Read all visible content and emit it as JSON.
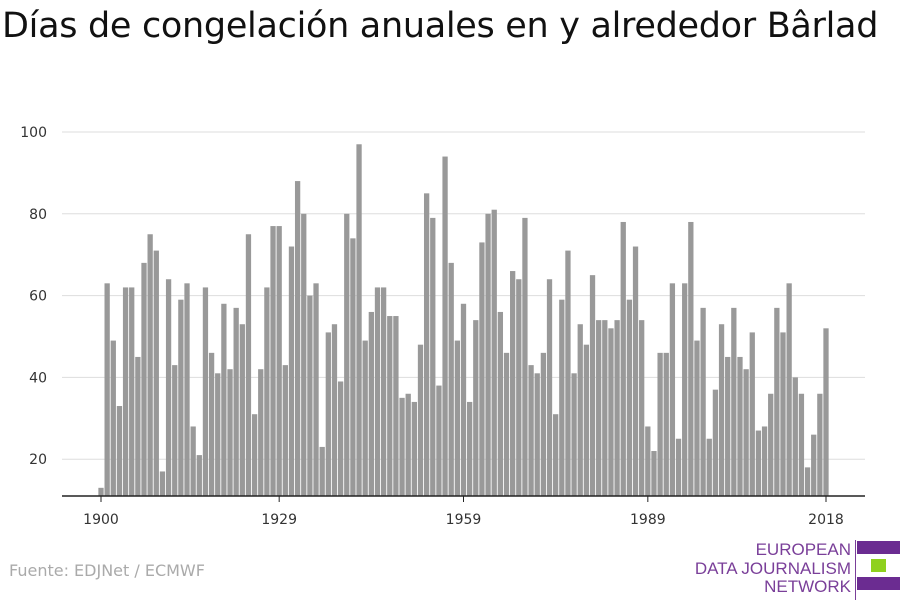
{
  "title": "Días de congelación anuales en y alrededor Bârlad",
  "source": "Fuente: EDJNet / ECMWF",
  "logo": {
    "lines": [
      "EUROPEAN",
      "DATA JOURNALISM",
      "NETWORK"
    ],
    "colors": {
      "purple": "#6b2c91",
      "green": "#8fd11e"
    }
  },
  "chart_data": {
    "type": "bar",
    "title": "Días de congelación anuales en y alrededor Bârlad",
    "xlabel": "",
    "ylabel": "",
    "x_start": 1900,
    "x_end": 2018,
    "xticks": [
      1900,
      1929,
      1959,
      1989,
      2018
    ],
    "yticks": [
      20,
      40,
      60,
      80,
      100
    ],
    "ylim": [
      11,
      100
    ],
    "grid": true,
    "bar_color": "#999999",
    "values": [
      13,
      63,
      49,
      33,
      62,
      62,
      45,
      68,
      75,
      71,
      17,
      64,
      43,
      59,
      63,
      28,
      21,
      62,
      46,
      41,
      58,
      42,
      57,
      53,
      75,
      31,
      42,
      62,
      77,
      77,
      43,
      72,
      88,
      80,
      60,
      63,
      23,
      51,
      53,
      39,
      80,
      74,
      97,
      49,
      56,
      62,
      62,
      55,
      55,
      35,
      36,
      34,
      48,
      85,
      79,
      38,
      94,
      68,
      49,
      58,
      34,
      54,
      73,
      80,
      81,
      56,
      46,
      66,
      64,
      79,
      43,
      41,
      46,
      64,
      31,
      59,
      71,
      41,
      53,
      48,
      65,
      54,
      54,
      52,
      54,
      78,
      59,
      72,
      54,
      28,
      22,
      46,
      46,
      63,
      25,
      63,
      78,
      49,
      57,
      25,
      37,
      53,
      45,
      57,
      45,
      42,
      51,
      27,
      28,
      36,
      57,
      51,
      63,
      40,
      36,
      18,
      26,
      36,
      52
    ]
  }
}
